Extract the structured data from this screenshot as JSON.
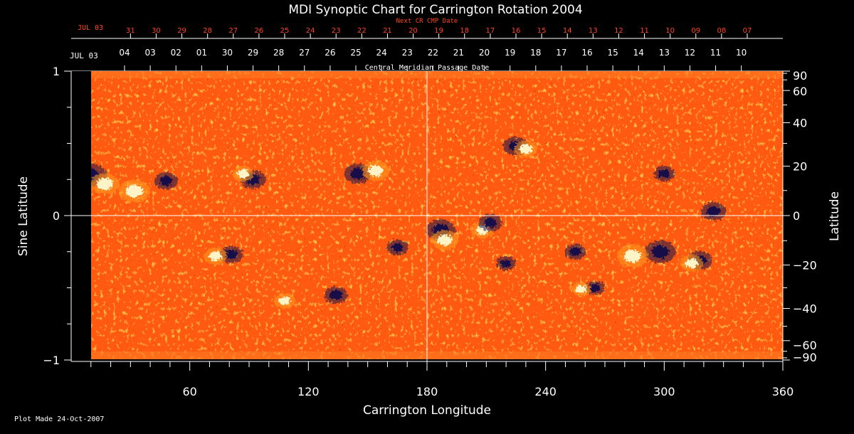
{
  "chart_data": {
    "type": "heatmap",
    "title": "MDI Synoptic Chart for Carrington Rotation 2004",
    "xlabel": "Carrington Longitude",
    "ylabel_left": "Sine Latitude",
    "ylabel_right": "Latitude",
    "xlim": [
      0,
      360
    ],
    "ylim_sine": [
      -1,
      1
    ],
    "x_ticks": [
      60,
      120,
      180,
      240,
      300,
      360
    ],
    "y_ticks_left": [
      1,
      0,
      -1
    ],
    "y_ticks_left_labels": [
      "1",
      "0",
      "−1"
    ],
    "y_ticks_right": [
      90,
      60,
      40,
      20,
      0,
      -20,
      -40,
      -60,
      -90
    ],
    "y_ticks_right_labels": [
      "90",
      "60",
      "40",
      "20",
      "0",
      "−20",
      "−40",
      "−60",
      "−90"
    ],
    "top_axis_black": {
      "label": "Central Meridian Passage Date",
      "start_label": "JUL 03",
      "ticks": [
        {
          "lon": 27,
          "label": "04"
        },
        {
          "lon": 40,
          "label": "03"
        },
        {
          "lon": 53,
          "label": "02"
        },
        {
          "lon": 66,
          "label": "01"
        },
        {
          "lon": 79,
          "label": "30"
        },
        {
          "lon": 92,
          "label": "29"
        },
        {
          "lon": 105,
          "label": "28"
        },
        {
          "lon": 118,
          "label": "27"
        },
        {
          "lon": 131,
          "label": "26"
        },
        {
          "lon": 144,
          "label": "25"
        },
        {
          "lon": 157,
          "label": "24"
        },
        {
          "lon": 170,
          "label": "23"
        },
        {
          "lon": 183,
          "label": "22"
        },
        {
          "lon": 196,
          "label": "21"
        },
        {
          "lon": 209,
          "label": "20"
        },
        {
          "lon": 222,
          "label": "19"
        },
        {
          "lon": 235,
          "label": "18"
        },
        {
          "lon": 248,
          "label": "17"
        },
        {
          "lon": 261,
          "label": "16"
        },
        {
          "lon": 274,
          "label": "15"
        },
        {
          "lon": 287,
          "label": "14"
        },
        {
          "lon": 300,
          "label": "13"
        },
        {
          "lon": 313,
          "label": "12"
        },
        {
          "lon": 326,
          "label": "11"
        },
        {
          "lon": 339,
          "label": "10"
        }
      ]
    },
    "top_axis_red": {
      "label": "Next CR CMP Date",
      "start_label": "JUL 03",
      "ticks": [
        {
          "lon": 30,
          "label": "31"
        },
        {
          "lon": 43,
          "label": "30"
        },
        {
          "lon": 56,
          "label": "29"
        },
        {
          "lon": 69,
          "label": "28"
        },
        {
          "lon": 82,
          "label": "27"
        },
        {
          "lon": 95,
          "label": "26"
        },
        {
          "lon": 108,
          "label": "25"
        },
        {
          "lon": 121,
          "label": "24"
        },
        {
          "lon": 134,
          "label": "23"
        },
        {
          "lon": 147,
          "label": "22"
        },
        {
          "lon": 160,
          "label": "21"
        },
        {
          "lon": 173,
          "label": "20"
        },
        {
          "lon": 186,
          "label": "19"
        },
        {
          "lon": 199,
          "label": "18"
        },
        {
          "lon": 212,
          "label": "17"
        },
        {
          "lon": 225,
          "label": "16"
        },
        {
          "lon": 238,
          "label": "15"
        },
        {
          "lon": 251,
          "label": "14"
        },
        {
          "lon": 264,
          "label": "13"
        },
        {
          "lon": 277,
          "label": "12"
        },
        {
          "lon": 290,
          "label": "11"
        },
        {
          "lon": 303,
          "label": "10"
        },
        {
          "lon": 316,
          "label": "09"
        },
        {
          "lon": 329,
          "label": "08"
        },
        {
          "lon": 342,
          "label": "07"
        }
      ]
    },
    "colormap": [
      "#120c4a",
      "#ff4a0a",
      "#ff9a22",
      "#fff4c8"
    ],
    "features": [
      {
        "lon": 10,
        "sinlat": 0.28,
        "polarity": "negative",
        "strength": 1.0
      },
      {
        "lon": 17,
        "sinlat": 0.22,
        "polarity": "positive",
        "strength": 0.9
      },
      {
        "lon": 32,
        "sinlat": 0.17,
        "polarity": "positive",
        "strength": 1.0
      },
      {
        "lon": 48,
        "sinlat": 0.24,
        "polarity": "negative",
        "strength": 0.6
      },
      {
        "lon": 92,
        "sinlat": 0.25,
        "polarity": "negative",
        "strength": 0.7
      },
      {
        "lon": 87,
        "sinlat": 0.29,
        "polarity": "positive",
        "strength": 0.5
      },
      {
        "lon": 145,
        "sinlat": 0.29,
        "polarity": "negative",
        "strength": 0.8
      },
      {
        "lon": 154,
        "sinlat": 0.31,
        "polarity": "positive",
        "strength": 0.8
      },
      {
        "lon": 225,
        "sinlat": 0.48,
        "polarity": "negative",
        "strength": 0.7
      },
      {
        "lon": 230,
        "sinlat": 0.46,
        "polarity": "positive",
        "strength": 0.6
      },
      {
        "lon": 325,
        "sinlat": 0.03,
        "polarity": "negative",
        "strength": 0.7
      },
      {
        "lon": 300,
        "sinlat": 0.29,
        "polarity": "negative",
        "strength": 0.5
      },
      {
        "lon": 187,
        "sinlat": -0.1,
        "polarity": "negative",
        "strength": 0.9
      },
      {
        "lon": 189,
        "sinlat": -0.17,
        "polarity": "positive",
        "strength": 0.8
      },
      {
        "lon": 208,
        "sinlat": -0.1,
        "polarity": "positive",
        "strength": 0.6
      },
      {
        "lon": 212,
        "sinlat": -0.05,
        "polarity": "negative",
        "strength": 0.6
      },
      {
        "lon": 298,
        "sinlat": -0.25,
        "polarity": "negative",
        "strength": 1.0
      },
      {
        "lon": 284,
        "sinlat": -0.28,
        "polarity": "positive",
        "strength": 1.0
      },
      {
        "lon": 318,
        "sinlat": -0.31,
        "polarity": "negative",
        "strength": 0.7
      },
      {
        "lon": 314,
        "sinlat": -0.33,
        "polarity": "positive",
        "strength": 0.6
      },
      {
        "lon": 81,
        "sinlat": -0.27,
        "polarity": "negative",
        "strength": 0.6
      },
      {
        "lon": 73,
        "sinlat": -0.28,
        "polarity": "positive",
        "strength": 0.6
      },
      {
        "lon": 134,
        "sinlat": -0.55,
        "polarity": "negative",
        "strength": 0.6
      },
      {
        "lon": 108,
        "sinlat": -0.59,
        "polarity": "positive",
        "strength": 0.5
      },
      {
        "lon": 255,
        "sinlat": -0.25,
        "polarity": "negative",
        "strength": 0.5
      },
      {
        "lon": 265,
        "sinlat": -0.5,
        "polarity": "negative",
        "strength": 0.4
      },
      {
        "lon": 258,
        "sinlat": -0.51,
        "polarity": "positive",
        "strength": 0.4
      },
      {
        "lon": 165,
        "sinlat": -0.22,
        "polarity": "negative",
        "strength": 0.5
      },
      {
        "lon": 220,
        "sinlat": -0.33,
        "polarity": "negative",
        "strength": 0.4
      }
    ]
  },
  "footer": {
    "plot_made": "Plot Made 24-Oct-2007"
  }
}
